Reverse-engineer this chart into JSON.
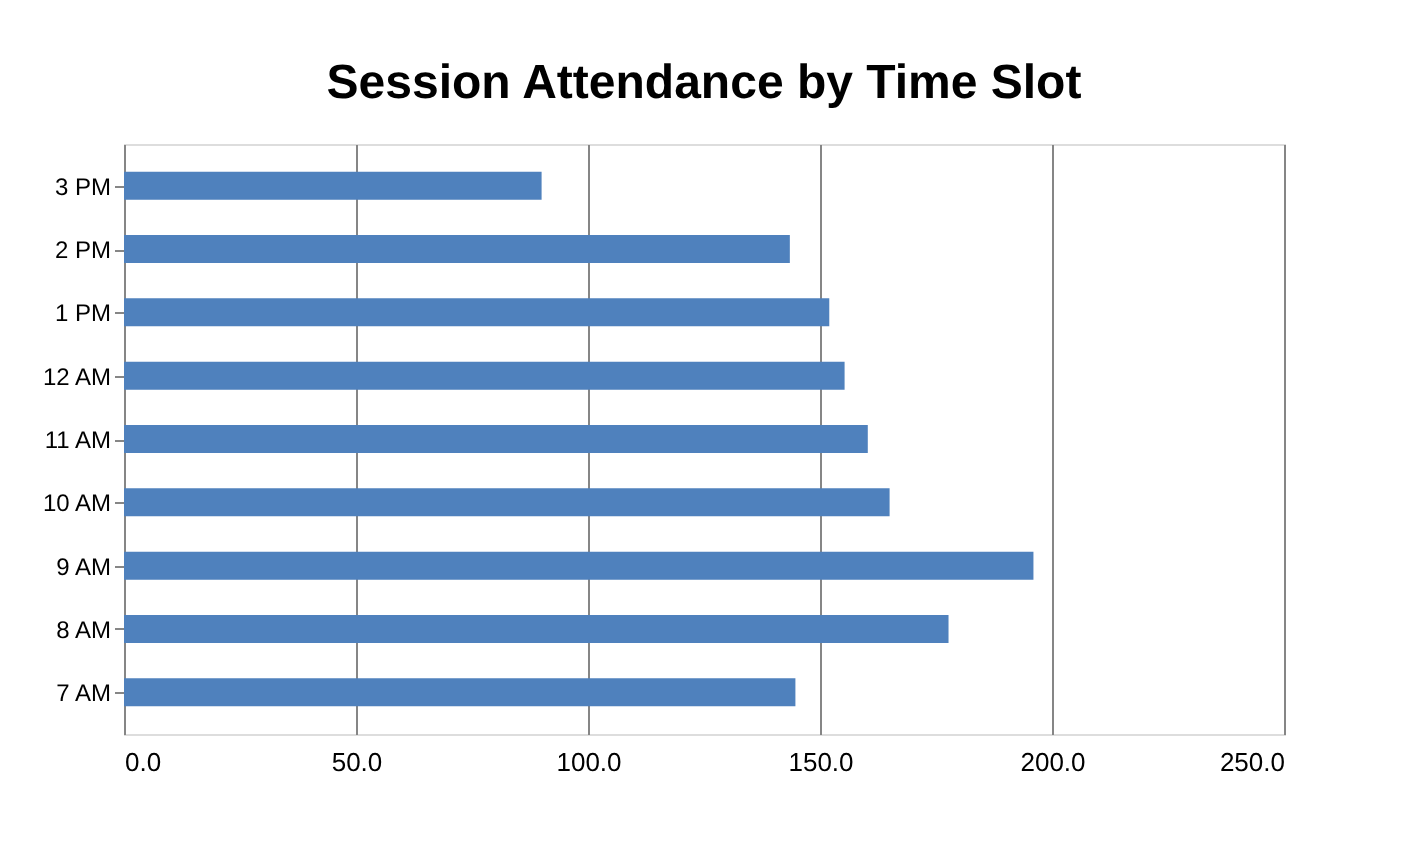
{
  "chart_data": {
    "type": "bar",
    "orientation": "horizontal",
    "title": "Session Attendance by Time Slot",
    "categories": [
      "3 PM",
      "2 PM",
      "1 PM",
      "12 AM",
      "11 AM",
      "10 AM",
      "9 AM",
      "8 AM",
      "7 AM"
    ],
    "values": [
      90,
      143.5,
      152,
      155.3,
      160.3,
      165,
      196,
      177.7,
      144.7
    ],
    "color": "#4f81bd",
    "xlim": [
      0,
      250
    ],
    "xticks": [
      {
        "value": 0,
        "label": "0.0"
      },
      {
        "value": 50,
        "label": "50.0"
      },
      {
        "value": 100,
        "label": "100.0"
      },
      {
        "value": 150,
        "label": "150.0"
      },
      {
        "value": 200,
        "label": "200.0"
      },
      {
        "value": 250,
        "label": "250.0"
      }
    ],
    "grid": "x"
  }
}
